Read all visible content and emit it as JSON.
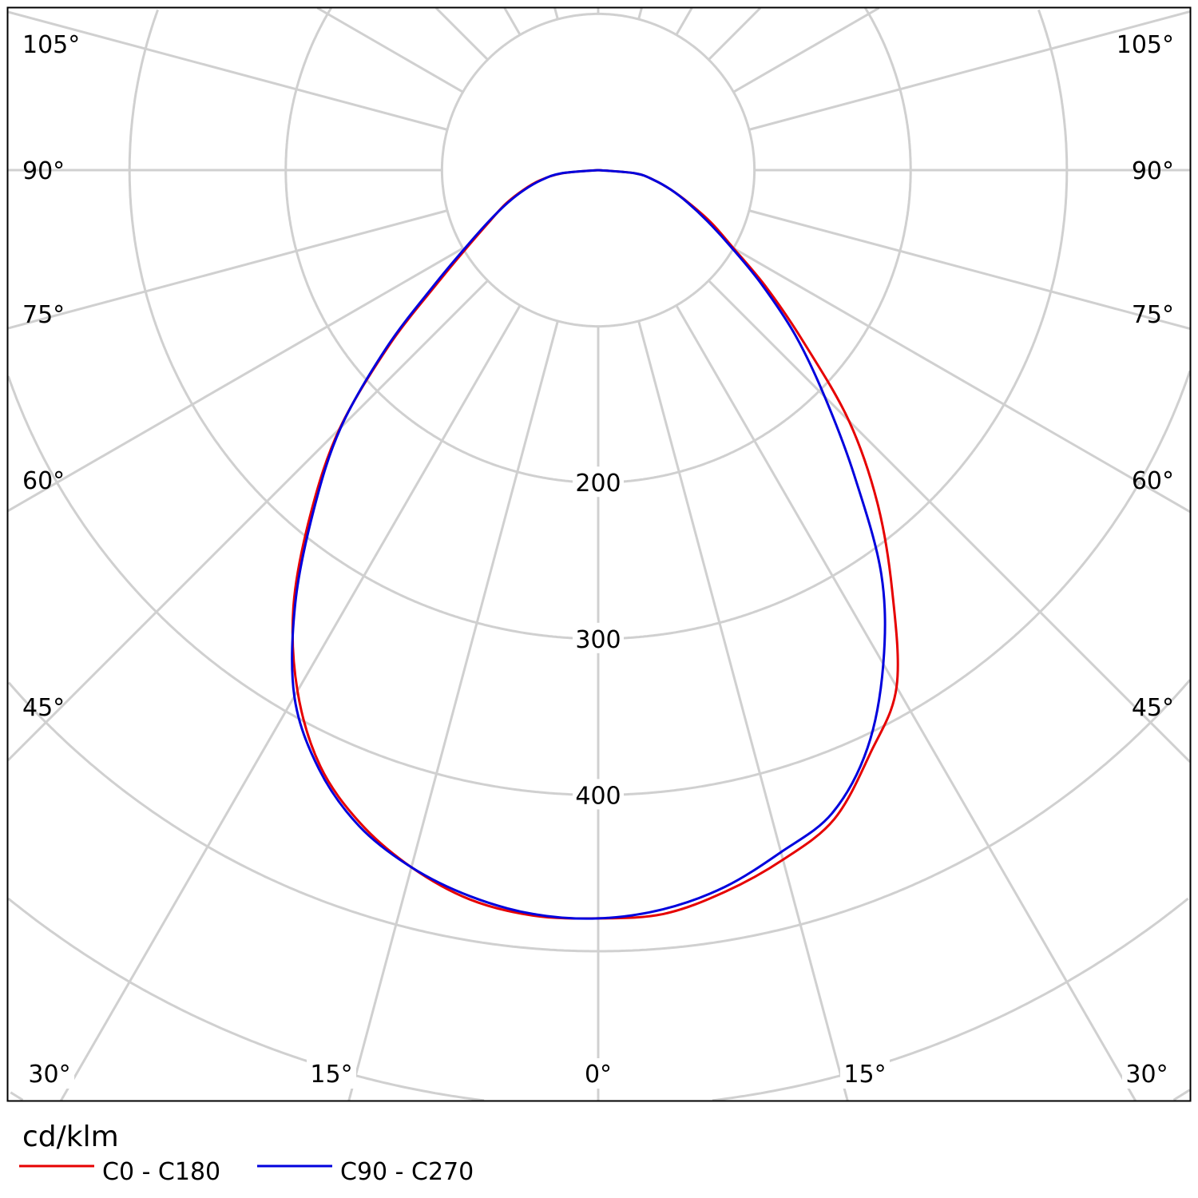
{
  "chart_data": {
    "type": "polar",
    "unit": "cd/klm",
    "radial_ticks": [
      100,
      200,
      300,
      400,
      500,
      600,
      700
    ],
    "radial_tick_labels": [
      "200",
      "300",
      "400"
    ],
    "angle_grid_step_deg": 15,
    "angle_labels": {
      "left": [
        "105°",
        "90°",
        "75°",
        "60°",
        "45°"
      ],
      "right": [
        "105°",
        "90°",
        "75°",
        "60°",
        "45°"
      ],
      "bottom": [
        "30°",
        "15°",
        "0°",
        "15°",
        "30°"
      ]
    },
    "gamma": [
      0,
      5,
      10,
      15,
      20,
      25,
      30,
      35,
      40,
      45,
      50,
      55,
      60,
      65,
      70,
      75,
      80,
      85,
      90
    ],
    "series": [
      {
        "name": "C0 - C180",
        "color": "#e60000",
        "right_values_C0": [
          479,
          478,
          469,
          457,
          442,
          412,
          382,
          328,
          278,
          227,
          172,
          132,
          100,
          80,
          62,
          48,
          36,
          24,
          0
        ],
        "left_values_C180": [
          479,
          479,
          474,
          462,
          445,
          421,
          385,
          340,
          286,
          234,
          175,
          125,
          95,
          76,
          63,
          50,
          38,
          23,
          0
        ]
      },
      {
        "name": "C90 - C270",
        "color": "#0000dd",
        "right_values_C90": [
          479,
          475,
          466,
          452,
          438,
          408,
          365,
          316,
          255,
          205,
          165,
          128,
          98,
          77,
          61,
          48,
          36,
          24,
          0
        ],
        "left_values_C270": [
          479,
          478,
          472,
          462,
          447,
          423,
          389,
          338,
          283,
          233,
          177,
          128,
          97,
          77,
          62,
          49,
          37,
          24,
          0
        ]
      }
    ],
    "legend": {
      "title": "cd/klm",
      "entries": [
        "C0 - C180",
        "C90 - C270"
      ],
      "placement": "bottom-left"
    }
  }
}
